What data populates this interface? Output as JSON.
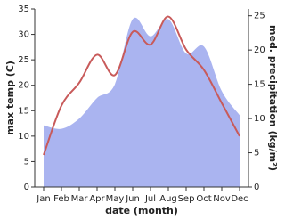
{
  "chart_data": {
    "type": "line",
    "x_label": "date (month)",
    "y_label": "max temp (C)",
    "y2_label": "med. precipitation (kg/m²)",
    "categories": [
      "Jan",
      "Feb",
      "Mar",
      "Apr",
      "May",
      "Jun",
      "Jul",
      "Aug",
      "Sep",
      "Oct",
      "Nov",
      "Dec"
    ],
    "series": [
      {
        "type": "area",
        "axis": "y2",
        "color": "#aab4f0",
        "values": [
          9,
          8.5,
          10,
          13,
          15,
          24.5,
          22,
          24.5,
          19.5,
          20.5,
          14,
          10.5
        ]
      },
      {
        "type": "line",
        "axis": "y",
        "color": "#c85a5a",
        "values": [
          6.3,
          16,
          20.5,
          26,
          22,
          30.5,
          28,
          33.5,
          27,
          23,
          16.5,
          10
        ]
      }
    ],
    "ylim": [
      0,
      35
    ],
    "yticks": [
      0,
      5,
      10,
      15,
      20,
      25,
      30,
      35
    ],
    "y2lim": [
      0,
      26
    ],
    "y2ticks": [
      0,
      5,
      10,
      15,
      20,
      25
    ]
  }
}
